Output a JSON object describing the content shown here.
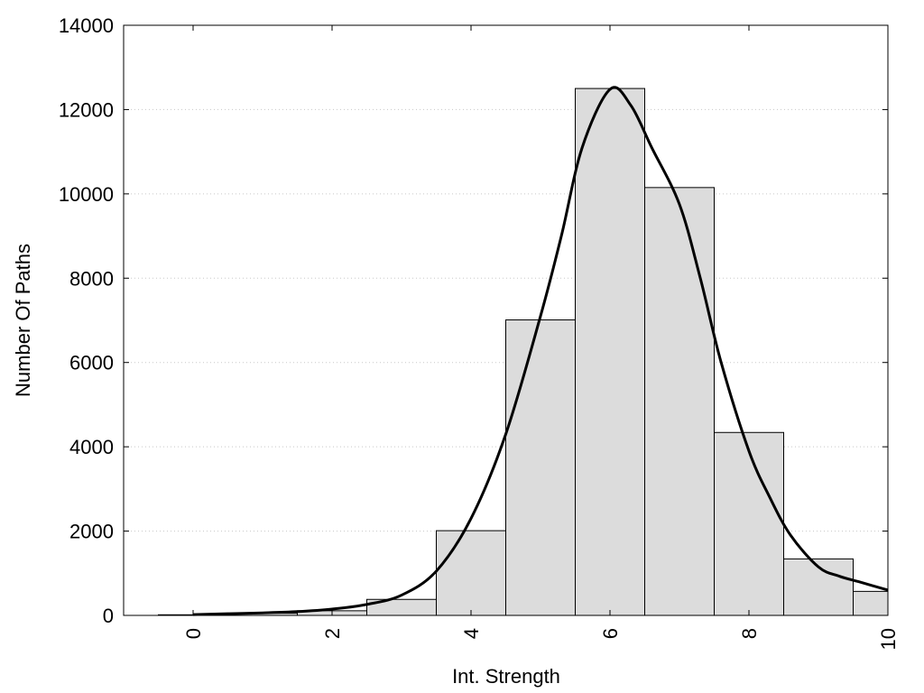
{
  "chart_data": {
    "type": "bar",
    "title": "",
    "xlabel": "Int. Strength",
    "ylabel": "Number Of Paths",
    "xlim": [
      -1,
      10
    ],
    "ylim": [
      0,
      14000
    ],
    "grid": "horizontal dotted",
    "bar_color": "#dcdcdc",
    "bar_stroke": "#000000",
    "curve_color": "#000000",
    "x_ticks": [
      "0",
      "2",
      "4",
      "6",
      "8",
      "10"
    ],
    "x_tick_values": [
      0,
      2,
      4,
      6,
      8,
      10
    ],
    "y_ticks": [
      "0",
      "2000",
      "4000",
      "6000",
      "8000",
      "10000",
      "12000",
      "14000"
    ],
    "y_tick_values": [
      0,
      2000,
      4000,
      6000,
      8000,
      10000,
      12000,
      14000
    ],
    "categories": [
      0,
      1,
      2,
      3,
      4,
      5,
      6,
      7,
      8,
      9,
      10
    ],
    "values": [
      15,
      50,
      110,
      380,
      2010,
      7010,
      12500,
      10150,
      4340,
      1340,
      570
    ],
    "density_curve": {
      "x": [
        0,
        0.5,
        1,
        1.5,
        2,
        2.5,
        3,
        3.5,
        4,
        4.5,
        5,
        5.3,
        5.6,
        6,
        6.3,
        6.6,
        7,
        7.3,
        7.6,
        8,
        8.3,
        8.6,
        9,
        9.3,
        9.6,
        10
      ],
      "y": [
        20,
        40,
        60,
        90,
        150,
        260,
        480,
        1050,
        2300,
        4300,
        7100,
        9000,
        11100,
        12480,
        12100,
        11100,
        9750,
        8000,
        6000,
        3900,
        2800,
        1900,
        1150,
        930,
        790,
        600
      ]
    }
  }
}
